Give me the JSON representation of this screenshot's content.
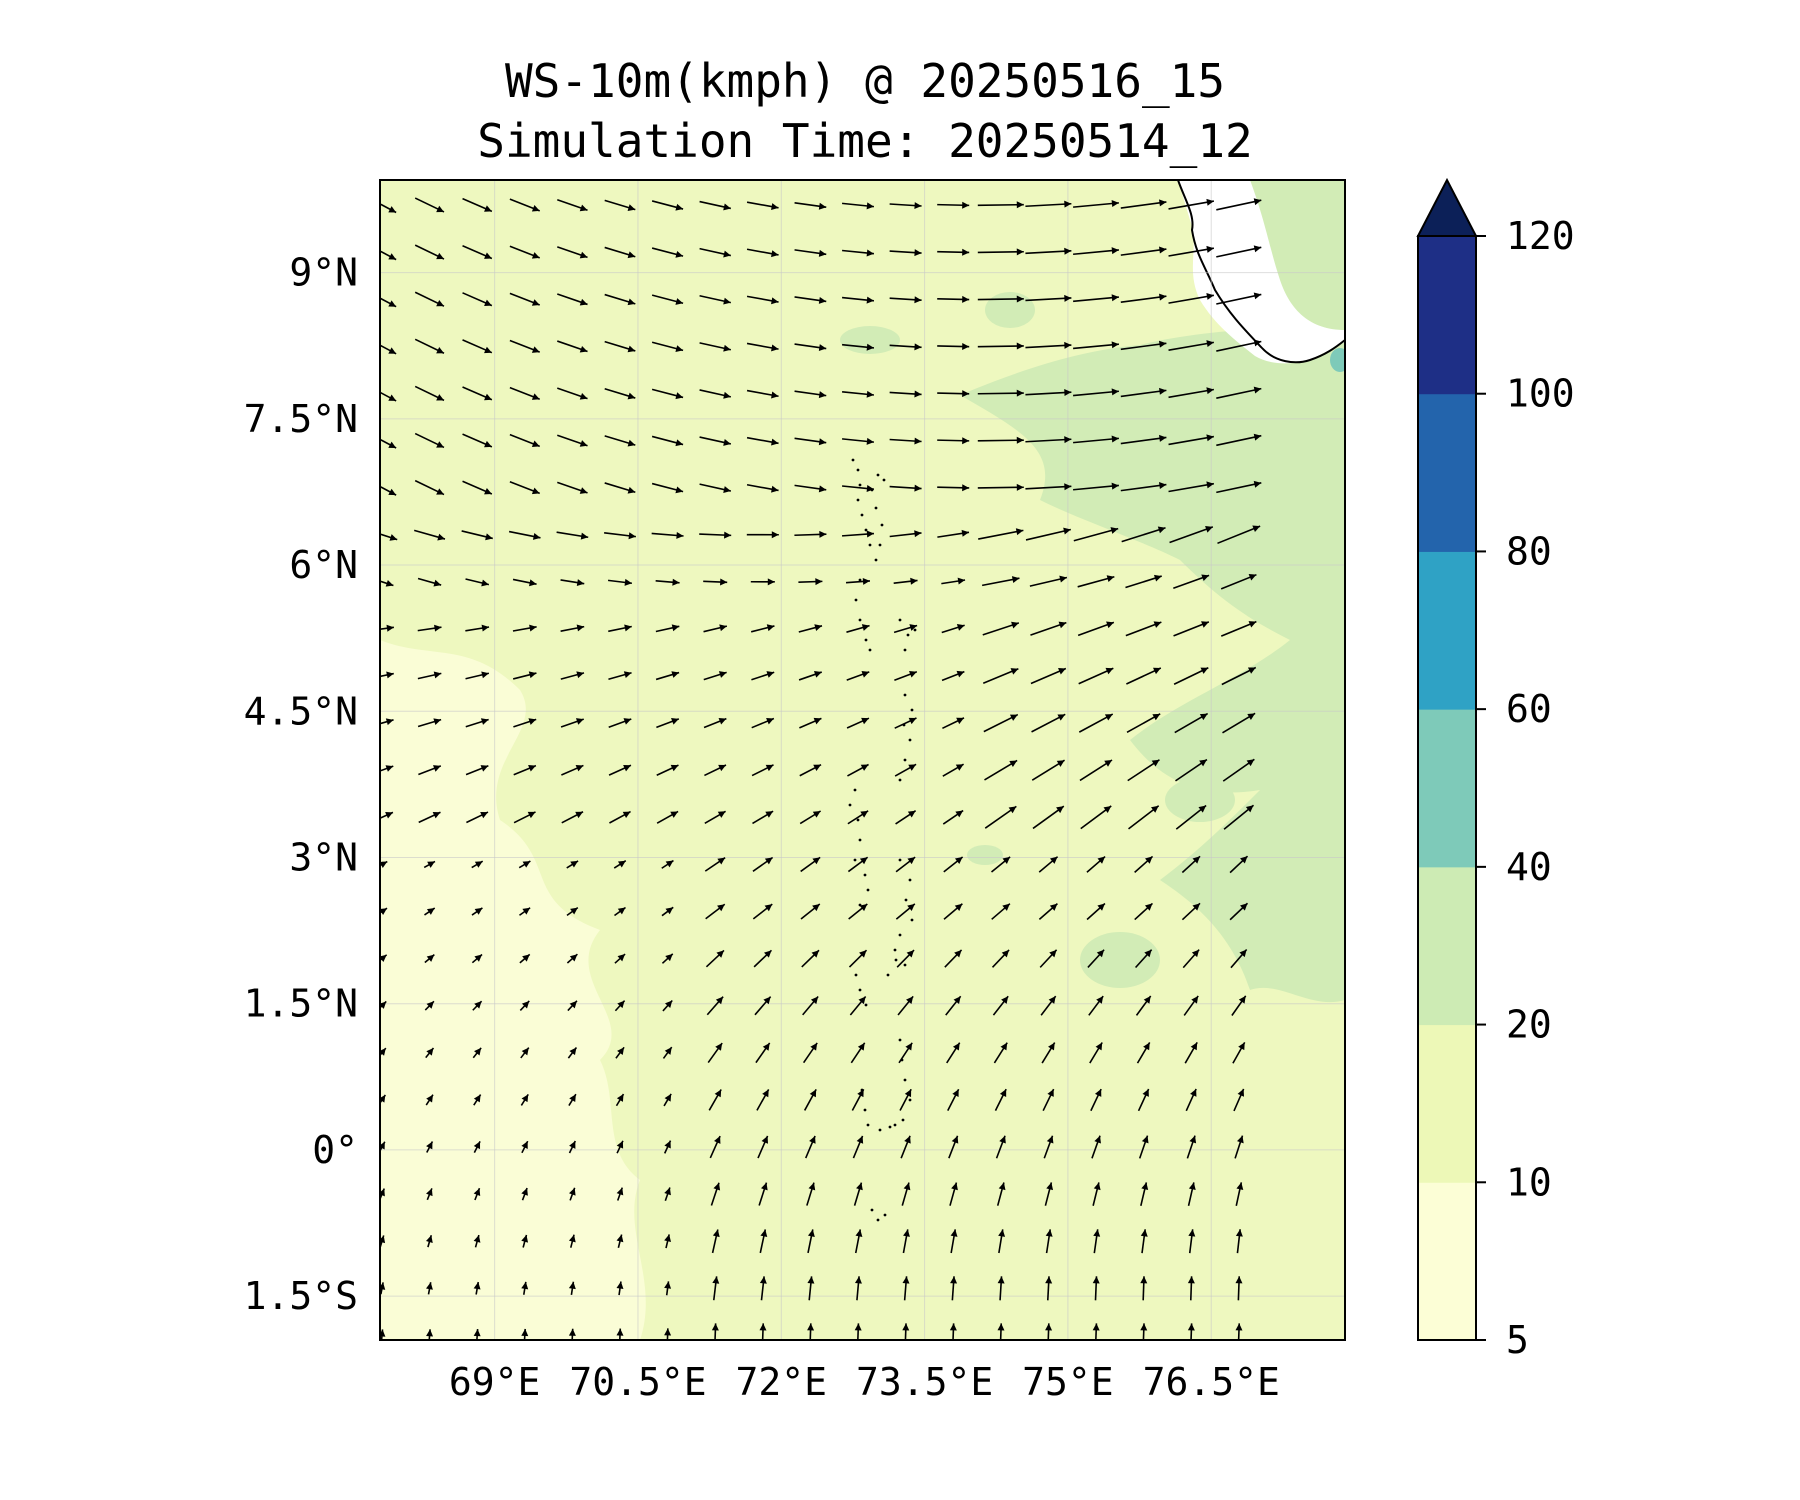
{
  "title": "WS-10m(kmph) @ 20250516_15",
  "subtitle": "Simulation Time: 20250514_12",
  "map": {
    "lon_range": [
      67.8,
      77.9
    ],
    "lat_range": [
      -1.95,
      9.95
    ],
    "lat_ticks": [
      {
        "value": 9,
        "label": "9°N"
      },
      {
        "value": 7.5,
        "label": "7.5°N"
      },
      {
        "value": 6,
        "label": "6°N"
      },
      {
        "value": 4.5,
        "label": "4.5°N"
      },
      {
        "value": 3,
        "label": "3°N"
      },
      {
        "value": 1.5,
        "label": "1.5°N"
      },
      {
        "value": 0,
        "label": "0°"
      },
      {
        "value": -1.5,
        "label": "1.5°S"
      }
    ],
    "lon_ticks": [
      {
        "value": 69,
        "label": "69°E"
      },
      {
        "value": 70.5,
        "label": "70.5°E"
      },
      {
        "value": 72,
        "label": "72°E"
      },
      {
        "value": 73.5,
        "label": "73.5°E"
      },
      {
        "value": 75,
        "label": "75°E"
      },
      {
        "value": 76.5,
        "label": "76.5°E"
      }
    ],
    "gridlines": true,
    "vector_field": "wind-direction-arrows",
    "colors": {
      "ocean_base": "#eef8bf",
      "calm_zone": "#fafdd6",
      "breezy_zone": "#d2ecb6",
      "strong_zone": "#7ecab9",
      "land": "#ffffff",
      "arrow": "#000000"
    }
  },
  "colorbar": {
    "levels": [
      5,
      10,
      20,
      40,
      60,
      80,
      100,
      120
    ],
    "labels": [
      "5",
      "10",
      "20",
      "40",
      "60",
      "80",
      "100",
      "120"
    ],
    "colors": [
      "#fcfed6",
      "#edf8b7",
      "#cdebb4",
      "#7ecab9",
      "#2fa2c5",
      "#2364ac",
      "#1e2f86"
    ],
    "extend_color": "#0c2058",
    "extend": "max"
  }
}
